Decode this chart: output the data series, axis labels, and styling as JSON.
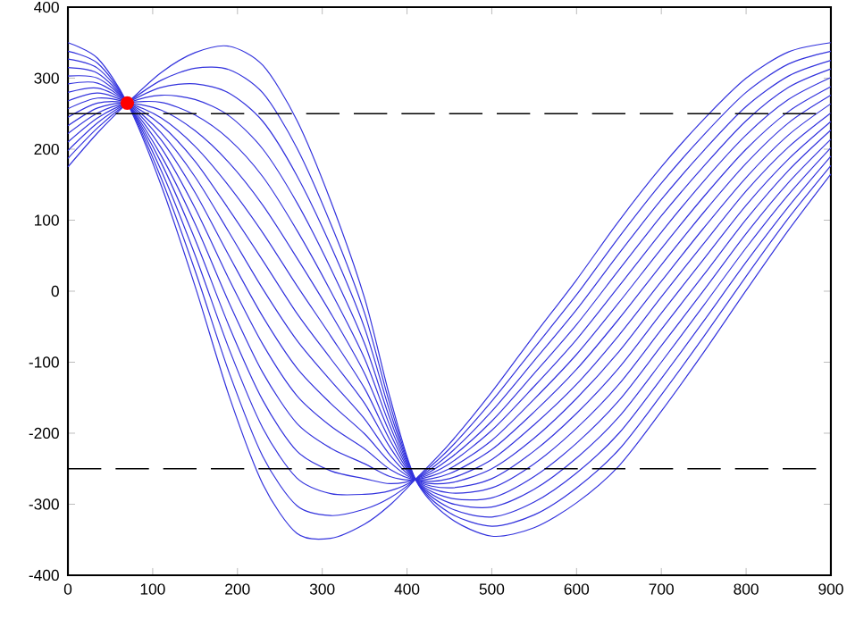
{
  "chart_data": {
    "type": "line",
    "x": [
      0,
      35,
      70,
      110,
      150,
      190,
      230,
      270,
      310,
      350,
      380,
      410,
      450,
      500,
      550,
      600,
      650,
      700,
      750,
      800,
      850,
      900
    ],
    "xlim": [
      0,
      900
    ],
    "ylim": [
      -400,
      400
    ],
    "xticks": [
      0,
      100,
      200,
      300,
      400,
      500,
      600,
      700,
      800,
      900
    ],
    "yticks": [
      -400,
      -300,
      -200,
      -100,
      0,
      100,
      200,
      300,
      400
    ],
    "grid": false,
    "legend": false,
    "line_style": "solid",
    "series": [
      {
        "color": "#3333dd",
        "values": [
          175,
          223,
          265,
          308,
          336,
          345,
          318,
          241,
          127,
          -10,
          -150,
          -265,
          -319,
          -345,
          -333,
          -298,
          -246,
          -169,
          -86,
          1,
          86,
          165
        ]
      },
      {
        "color": "#3333dd",
        "values": [
          187,
          230,
          265,
          297,
          314,
          312,
          279,
          202,
          95,
          -31,
          -160,
          -265,
          -312,
          -331,
          -315,
          -277,
          -223,
          -146,
          -64,
          21,
          103,
          177
        ]
      },
      {
        "color": "#3333dd",
        "values": [
          198,
          237,
          265,
          287,
          292,
          279,
          239,
          163,
          64,
          -52,
          -170,
          -265,
          -305,
          -318,
          -297,
          -256,
          -200,
          -123,
          -42,
          41,
          119,
          190
        ]
      },
      {
        "color": "#3333dd",
        "values": [
          210,
          244,
          265,
          276,
          270,
          247,
          200,
          125,
          32,
          -74,
          -180,
          -265,
          -298,
          -304,
          -279,
          -235,
          -177,
          -100,
          -20,
          61,
          136,
          202
        ]
      },
      {
        "color": "#3333dd",
        "values": [
          222,
          251,
          265,
          266,
          248,
          214,
          161,
          86,
          0,
          -95,
          -190,
          -265,
          -291,
          -291,
          -261,
          -214,
          -154,
          -77,
          1,
          81,
          153,
          214
        ]
      },
      {
        "color": "#3333dd",
        "values": [
          233,
          258,
          265,
          255,
          226,
          181,
          121,
          47,
          -31,
          -116,
          -200,
          -265,
          -284,
          -277,
          -243,
          -193,
          -131,
          -54,
          23,
          101,
          170,
          227
        ]
      },
      {
        "color": "#3333dd",
        "values": [
          245,
          265,
          265,
          244,
          204,
          148,
          82,
          8,
          -63,
          -137,
          -210,
          -265,
          -277,
          -264,
          -225,
          -172,
          -108,
          -31,
          45,
          121,
          186,
          239
        ]
      },
      {
        "color": "#3333dd",
        "values": [
          257,
          272,
          265,
          234,
          183,
          115,
          43,
          -31,
          -95,
          -158,
          -220,
          -265,
          -270,
          -250,
          -207,
          -151,
          -85,
          -8,
          67,
          141,
          203,
          251
        ]
      },
      {
        "color": "#3333dd",
        "values": [
          268,
          279,
          265,
          223,
          161,
          83,
          3,
          -69,
          -126,
          -180,
          -231,
          -265,
          -264,
          -237,
          -188,
          -131,
          -62,
          14,
          89,
          160,
          220,
          264
        ]
      },
      {
        "color": "#3333dd",
        "values": [
          280,
          286,
          265,
          213,
          139,
          50,
          -36,
          -108,
          -158,
          -201,
          -241,
          -265,
          -257,
          -223,
          -170,
          -110,
          -39,
          37,
          111,
          180,
          237,
          276
        ]
      },
      {
        "color": "#3333dd",
        "values": [
          292,
          293,
          265,
          202,
          117,
          17,
          -75,
          -147,
          -190,
          -222,
          -251,
          -265,
          -250,
          -210,
          -152,
          -89,
          -16,
          60,
          133,
          200,
          253,
          288
        ]
      },
      {
        "color": "#3333dd",
        "values": [
          303,
          300,
          265,
          191,
          95,
          -16,
          -115,
          -186,
          -221,
          -243,
          -261,
          -265,
          -243,
          -196,
          -134,
          -68,
          7,
          83,
          155,
          220,
          270,
          301
        ]
      },
      {
        "color": "#3333dd",
        "values": [
          315,
          307,
          265,
          181,
          73,
          -49,
          -154,
          -225,
          -253,
          -264,
          -271,
          -265,
          -236,
          -183,
          -116,
          -47,
          30,
          106,
          176,
          240,
          287,
          313
        ]
      },
      {
        "color": "#3333dd",
        "values": [
          327,
          314,
          265,
          170,
          51,
          -81,
          -193,
          -263,
          -285,
          -286,
          -281,
          -265,
          -229,
          -169,
          -98,
          -26,
          53,
          129,
          198,
          260,
          303,
          325
        ]
      },
      {
        "color": "#3333dd",
        "values": [
          338,
          321,
          265,
          159,
          29,
          -114,
          -233,
          -302,
          -316,
          -307,
          -291,
          -265,
          -222,
          -155,
          -80,
          -5,
          76,
          152,
          220,
          280,
          320,
          338
        ]
      },
      {
        "color": "#3333dd",
        "values": [
          350,
          328,
          265,
          149,
          7,
          -147,
          -272,
          -341,
          -348,
          -328,
          -301,
          -265,
          -215,
          -142,
          -62,
          16,
          99,
          175,
          242,
          300,
          337,
          350
        ]
      },
      {
        "type": "scatter",
        "marker": "circle",
        "color": "#ff0000",
        "x": [
          70
        ],
        "values": [
          265
        ]
      }
    ],
    "ref_lines": [
      {
        "axis": "y",
        "value": 250,
        "color": "#000000",
        "line_style": "dashed"
      },
      {
        "axis": "y",
        "value": -250,
        "color": "#000000",
        "line_style": "dashed"
      }
    ]
  }
}
